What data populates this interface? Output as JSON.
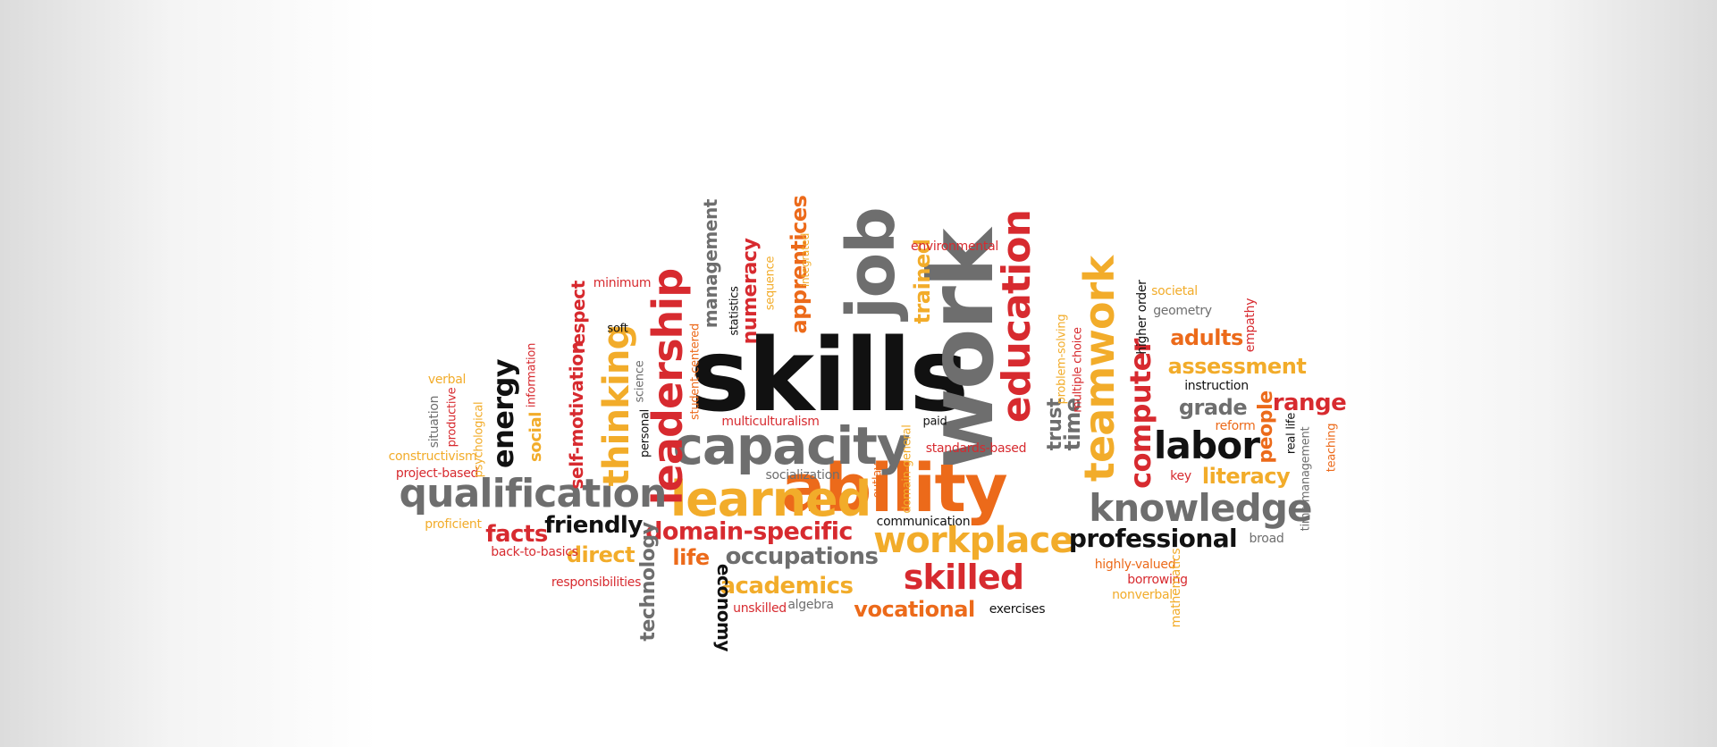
{
  "colors": {
    "black": "#111111",
    "gray": "#6e6e6e",
    "red": "#d72a2f",
    "orange": "#ec6a1a",
    "yellow": "#f2ac2a"
  },
  "words": [
    {
      "text": "skills",
      "color": "black",
      "bold": true,
      "rot": 0
    },
    {
      "text": "work",
      "color": "gray",
      "bold": true,
      "rot": -90
    },
    {
      "text": "ability",
      "color": "orange",
      "bold": true,
      "rot": 0
    },
    {
      "text": "capacity",
      "color": "gray",
      "bold": true,
      "rot": 0
    },
    {
      "text": "learned",
      "color": "yellow",
      "bold": true,
      "rot": 0
    },
    {
      "text": "job",
      "color": "gray",
      "bold": true,
      "rot": -90
    },
    {
      "text": "leadership",
      "color": "red",
      "bold": true,
      "rot": -90
    },
    {
      "text": "education",
      "color": "red",
      "bold": true,
      "rot": -90
    },
    {
      "text": "teamwork",
      "color": "yellow",
      "bold": true,
      "rot": -90
    },
    {
      "text": "qualification",
      "color": "gray",
      "bold": true,
      "rot": 0
    },
    {
      "text": "knowledge",
      "color": "gray",
      "bold": true,
      "rot": 0
    },
    {
      "text": "workplace",
      "color": "yellow",
      "bold": true,
      "rot": 0
    },
    {
      "text": "skilled",
      "color": "red",
      "bold": true,
      "rot": 0
    },
    {
      "text": "labor",
      "color": "black",
      "bold": true,
      "rot": 0
    },
    {
      "text": "computer",
      "color": "red",
      "bold": true,
      "rot": -90
    },
    {
      "text": "thinking",
      "color": "yellow",
      "bold": true,
      "rot": -90
    },
    {
      "text": "energy",
      "color": "black",
      "bold": true,
      "rot": -90
    },
    {
      "text": "professional",
      "color": "black",
      "bold": true,
      "rot": 0
    },
    {
      "text": "domain-specific",
      "color": "red",
      "bold": true,
      "rot": 0
    },
    {
      "text": "occupations",
      "color": "gray",
      "bold": true,
      "rot": 0
    },
    {
      "text": "academics",
      "color": "yellow",
      "bold": true,
      "rot": 0
    },
    {
      "text": "vocational",
      "color": "orange",
      "bold": true,
      "rot": 0
    },
    {
      "text": "friendly",
      "color": "black",
      "bold": true,
      "rot": 0
    },
    {
      "text": "facts",
      "color": "red",
      "bold": true,
      "rot": 0
    },
    {
      "text": "direct",
      "color": "yellow",
      "bold": true,
      "rot": 0
    },
    {
      "text": "life",
      "color": "orange",
      "bold": true,
      "rot": 0
    },
    {
      "text": "technology",
      "color": "gray",
      "bold": true,
      "rot": -90
    },
    {
      "text": "economy",
      "color": "black",
      "bold": true,
      "rot": 90
    },
    {
      "text": "management",
      "color": "gray",
      "bold": true,
      "rot": -90
    },
    {
      "text": "numeracy",
      "color": "red",
      "bold": true,
      "rot": -90
    },
    {
      "text": "apprentices",
      "color": "orange",
      "bold": true,
      "rot": -90
    },
    {
      "text": "trained",
      "color": "yellow",
      "bold": true,
      "rot": -90
    },
    {
      "text": "time",
      "color": "gray",
      "bold": true,
      "rot": -90
    },
    {
      "text": "trust",
      "color": "gray",
      "bold": true,
      "rot": -90
    },
    {
      "text": "self-motivation",
      "color": "red",
      "bold": true,
      "rot": -90
    },
    {
      "text": "respect",
      "color": "red",
      "bold": true,
      "rot": -90
    },
    {
      "text": "social",
      "color": "yellow",
      "bold": true,
      "rot": -90
    },
    {
      "text": "adults",
      "color": "orange",
      "bold": true,
      "rot": 0
    },
    {
      "text": "assessment",
      "color": "yellow",
      "bold": true,
      "rot": 0
    },
    {
      "text": "grade",
      "color": "gray",
      "bold": true,
      "rot": 0
    },
    {
      "text": "range",
      "color": "red",
      "bold": true,
      "rot": 0
    },
    {
      "text": "people",
      "color": "orange",
      "bold": true,
      "rot": -90
    },
    {
      "text": "literacy",
      "color": "yellow",
      "bold": true,
      "rot": 0
    },
    {
      "text": "key",
      "color": "red",
      "bold": false,
      "rot": 0
    },
    {
      "text": "broad",
      "color": "gray",
      "bold": false,
      "rot": 0
    },
    {
      "text": "highly-valued",
      "color": "orange",
      "bold": false,
      "rot": 0
    },
    {
      "text": "borrowing",
      "color": "red",
      "bold": false,
      "rot": 0
    },
    {
      "text": "nonverbal",
      "color": "yellow",
      "bold": false,
      "rot": 0
    },
    {
      "text": "mathematics",
      "color": "yellow",
      "bold": false,
      "rot": -90
    },
    {
      "text": "exercises",
      "color": "black",
      "bold": false,
      "rot": 0
    },
    {
      "text": "unskilled",
      "color": "red",
      "bold": false,
      "rot": 0
    },
    {
      "text": "algebra",
      "color": "gray",
      "bold": false,
      "rot": 0
    },
    {
      "text": "responsibilities",
      "color": "red",
      "bold": false,
      "rot": 0
    },
    {
      "text": "back-to-basics",
      "color": "red",
      "bold": false,
      "rot": 0
    },
    {
      "text": "proficient",
      "color": "yellow",
      "bold": false,
      "rot": 0
    },
    {
      "text": "project-based",
      "color": "red",
      "bold": false,
      "rot": 0
    },
    {
      "text": "constructivism",
      "color": "yellow",
      "bold": false,
      "rot": 0
    },
    {
      "text": "situation",
      "color": "gray",
      "bold": false,
      "rot": -90
    },
    {
      "text": "verbal",
      "color": "yellow",
      "bold": false,
      "rot": 0
    },
    {
      "text": "productive",
      "color": "red",
      "bold": false,
      "rot": -90
    },
    {
      "text": "psychological",
      "color": "yellow",
      "bold": false,
      "rot": -90
    },
    {
      "text": "information",
      "color": "red",
      "bold": false,
      "rot": -90
    },
    {
      "text": "minimum",
      "color": "red",
      "bold": false,
      "rot": 0
    },
    {
      "text": "soft",
      "color": "black",
      "bold": false,
      "rot": 0
    },
    {
      "text": "science",
      "color": "gray",
      "bold": false,
      "rot": -90
    },
    {
      "text": "personal",
      "color": "black",
      "bold": false,
      "rot": -90
    },
    {
      "text": "student-centered",
      "color": "orange",
      "bold": false,
      "rot": -90
    },
    {
      "text": "statistics",
      "color": "black",
      "bold": false,
      "rot": -90
    },
    {
      "text": "sequence",
      "color": "yellow",
      "bold": false,
      "rot": -90
    },
    {
      "text": "integrated",
      "color": "yellow",
      "bold": false,
      "rot": -90
    },
    {
      "text": "environmental",
      "color": "red",
      "bold": false,
      "rot": 0
    },
    {
      "text": "multiculturalism",
      "color": "red",
      "bold": false,
      "rot": 0
    },
    {
      "text": "socialization",
      "color": "gray",
      "bold": false,
      "rot": 0
    },
    {
      "text": "paid",
      "color": "black",
      "bold": false,
      "rot": 0
    },
    {
      "text": "domain-general",
      "color": "yellow",
      "bold": false,
      "rot": -90
    },
    {
      "text": "outlay",
      "color": "orange",
      "bold": false,
      "rot": -90
    },
    {
      "text": "standards-based",
      "color": "red",
      "bold": false,
      "rot": 0
    },
    {
      "text": "communication",
      "color": "black",
      "bold": false,
      "rot": 0
    },
    {
      "text": "problem-solving",
      "color": "yellow",
      "bold": false,
      "rot": -90
    },
    {
      "text": "multiple choice",
      "color": "red",
      "bold": false,
      "rot": -90
    },
    {
      "text": "higher order",
      "color": "black",
      "bold": false,
      "rot": -90
    },
    {
      "text": "societal",
      "color": "yellow",
      "bold": false,
      "rot": 0
    },
    {
      "text": "geometry",
      "color": "gray",
      "bold": false,
      "rot": 0
    },
    {
      "text": "empathy",
      "color": "red",
      "bold": false,
      "rot": -90
    },
    {
      "text": "instruction",
      "color": "black",
      "bold": false,
      "rot": 0
    },
    {
      "text": "reform",
      "color": "orange",
      "bold": false,
      "rot": 0
    },
    {
      "text": "real life",
      "color": "black",
      "bold": false,
      "rot": -90
    },
    {
      "text": "time management",
      "color": "gray",
      "bold": false,
      "rot": -90
    },
    {
      "text": "teaching",
      "color": "orange",
      "bold": false,
      "rot": -90
    }
  ]
}
